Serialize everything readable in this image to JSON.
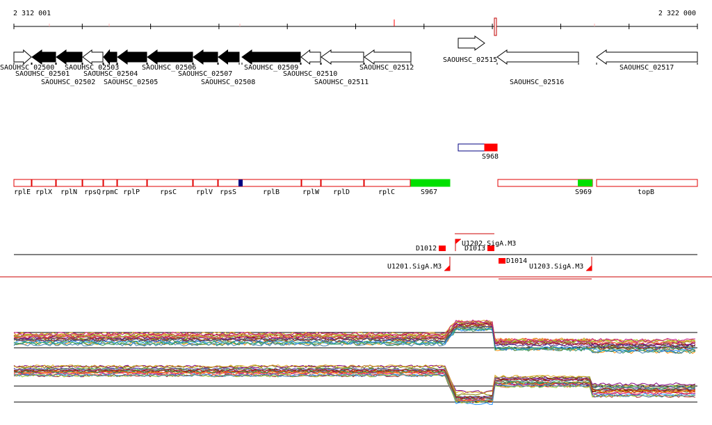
{
  "coords": {
    "start": "2 312 001",
    "end": "2 322 000"
  },
  "colors": {
    "red": "#ff0000",
    "green": "#00e000",
    "navy": "#000080",
    "black": "#000000"
  },
  "genes": [
    {
      "label": "SAOUHSC_02500",
      "dir": "r",
      "fill": "white"
    },
    {
      "label": "SAOUHSC_02501",
      "dir": "l",
      "fill": "black"
    },
    {
      "label": "SAOUHSC_02502",
      "dir": "l",
      "fill": "black"
    },
    {
      "label": "SAOUHSC_02503",
      "dir": "l",
      "fill": "white"
    },
    {
      "label": "SAOUHSC_02504",
      "dir": "l",
      "fill": "black"
    },
    {
      "label": "SAOUHSC_02505",
      "dir": "l",
      "fill": "black"
    },
    {
      "label": "SAOUHSC_02506",
      "dir": "l",
      "fill": "black"
    },
    {
      "label": "SAOUHSC_02507",
      "dir": "l",
      "fill": "black"
    },
    {
      "label": "SAOUHSC_02508",
      "dir": "l",
      "fill": "black"
    },
    {
      "label": "SAOUHSC_02509",
      "dir": "l",
      "fill": "black"
    },
    {
      "label": "SAOUHSC_02510",
      "dir": "l",
      "fill": "white"
    },
    {
      "label": "SAOUHSC_02511",
      "dir": "l",
      "fill": "white"
    },
    {
      "label": "SAOUHSC_02512",
      "dir": "l",
      "fill": "white"
    },
    {
      "label": "SAOUHSC_02515",
      "dir": "r",
      "fill": "white"
    },
    {
      "label": "SAOUHSC_02516",
      "dir": "l",
      "fill": "white"
    },
    {
      "label": "SAOUHSC_02517",
      "dir": "l",
      "fill": "white"
    }
  ],
  "segment_label": "S968",
  "operon_genes": [
    "rplE",
    "rplX",
    "rplN",
    "rpsQ",
    "rpmC",
    "rplP",
    "rpsC",
    "rplV",
    "rpsS",
    "rplB",
    "rplW",
    "rplD",
    "rplC",
    "S967",
    "S969",
    "topB"
  ],
  "features": {
    "d1012": "D1012",
    "d1013": "D1013",
    "d1014": "D1014",
    "u1201": "U1201.SigA.M3",
    "u1202": "U1202.SigA.M3",
    "u1203": "U1203.SigA.M3"
  },
  "series_count": 40
}
